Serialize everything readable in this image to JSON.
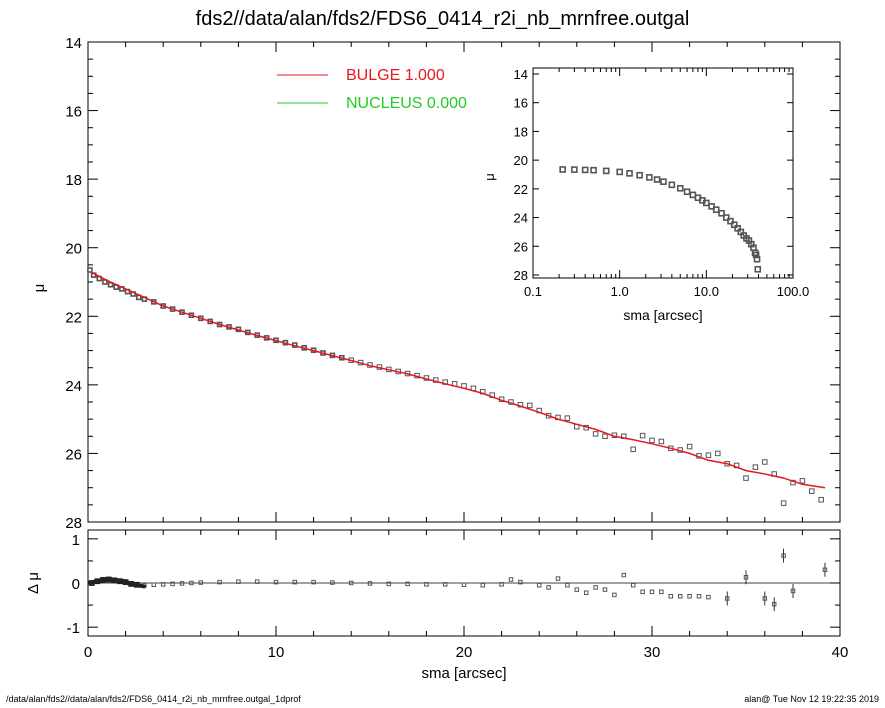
{
  "title": "fds2//data/alan/fds2/FDS6_0414_r2i_nb_mrnfree.outgal",
  "footer_left": "/data/alan/fds2//data/alan/fds2/FDS6_0414_r2i_nb_mrnfree.outgal_1dprof",
  "footer_right": "alan@  Tue Nov 12 19:22:35 2019",
  "colors": {
    "bulge": "#e8171b",
    "nucleus": "#22cc22",
    "data": "#555555",
    "axis": "#000000"
  },
  "chart_data": [
    {
      "id": "main",
      "type": "scatter",
      "xlabel": "",
      "ylabel": "μ",
      "xlim": [
        0,
        40
      ],
      "ylim": [
        28,
        14
      ],
      "xticks": [],
      "yticks": [
        "14",
        "16",
        "18",
        "20",
        "22",
        "24",
        "26",
        "28"
      ],
      "legend": {
        "placement": "top-center",
        "entries": [
          {
            "label": "BULGE  1.000",
            "color": "#e8171b"
          },
          {
            "label": "NUCLEUS  0.000",
            "color": "#22cc22"
          }
        ]
      },
      "series": [
        {
          "name": "BULGE  1.000",
          "style": "line",
          "x": [
            0.2,
            1,
            2,
            3,
            4,
            5,
            6,
            7,
            8,
            9,
            10,
            11,
            12,
            13,
            14,
            15,
            16,
            17,
            18,
            19,
            20,
            21,
            22,
            23,
            24,
            25,
            26,
            27,
            28,
            29,
            30,
            31,
            32,
            33,
            34,
            35,
            36,
            37,
            38,
            39.2
          ],
          "y": [
            20.72,
            20.95,
            21.2,
            21.45,
            21.7,
            21.88,
            22.06,
            22.24,
            22.4,
            22.56,
            22.71,
            22.86,
            23.0,
            23.15,
            23.29,
            23.44,
            23.56,
            23.68,
            23.83,
            23.97,
            24.1,
            24.25,
            24.45,
            24.62,
            24.8,
            25.0,
            25.15,
            25.3,
            25.5,
            25.6,
            25.72,
            25.85,
            26.0,
            26.2,
            26.3,
            26.5,
            26.6,
            26.72,
            26.9,
            27.0
          ]
        },
        {
          "name": "data",
          "style": "square-markers",
          "x": [
            0.1,
            0.3,
            0.6,
            0.9,
            1.2,
            1.5,
            1.8,
            2.1,
            2.4,
            2.7,
            3.0,
            3.5,
            4.0,
            4.5,
            5.0,
            5.5,
            6.0,
            6.5,
            7.0,
            7.5,
            8.0,
            8.5,
            9.0,
            9.5,
            10.0,
            10.5,
            11.0,
            11.5,
            12.0,
            12.5,
            13.0,
            13.5,
            14.0,
            14.5,
            15.0,
            15.5,
            16.0,
            16.5,
            17.0,
            17.5,
            18.0,
            18.5,
            19.0,
            19.5,
            20.0,
            20.5,
            21.0,
            21.5,
            22.0,
            22.5,
            23.0,
            23.5,
            24.0,
            24.5,
            25.0,
            25.5,
            26.0,
            26.5,
            27.0,
            27.5,
            28.0,
            28.5,
            29.0,
            29.5,
            30.0,
            30.5,
            31.0,
            31.5,
            32.0,
            32.5,
            33.0,
            33.5,
            34.0,
            34.5,
            35.0,
            35.5,
            36.0,
            36.5,
            37.0,
            37.5,
            38.0,
            38.5,
            39.0
          ],
          "y": [
            20.65,
            20.8,
            20.9,
            21.0,
            21.08,
            21.15,
            21.2,
            21.28,
            21.35,
            21.45,
            21.5,
            21.58,
            21.7,
            21.79,
            21.88,
            21.97,
            22.06,
            22.15,
            22.24,
            22.31,
            22.38,
            22.47,
            22.55,
            22.63,
            22.7,
            22.77,
            22.84,
            22.92,
            22.99,
            23.07,
            23.14,
            23.21,
            23.28,
            23.35,
            23.42,
            23.48,
            23.55,
            23.61,
            23.67,
            23.73,
            23.8,
            23.86,
            23.92,
            23.97,
            24.03,
            24.1,
            24.2,
            24.3,
            24.42,
            24.5,
            24.58,
            24.6,
            24.75,
            24.9,
            24.95,
            24.97,
            25.22,
            25.25,
            25.43,
            25.5,
            25.47,
            25.5,
            25.88,
            25.48,
            25.62,
            25.65,
            25.85,
            25.9,
            25.8,
            26.07,
            26.05,
            26.0,
            26.3,
            26.35,
            26.72,
            26.4,
            26.25,
            26.6,
            27.45,
            26.85,
            26.8,
            27.1,
            27.35
          ]
        }
      ]
    },
    {
      "id": "inset",
      "type": "scatter",
      "xlabel": "sma [arcsec]",
      "ylabel": "μ",
      "xscale": "log",
      "xlim": [
        0.1,
        100
      ],
      "ylim": [
        28,
        14
      ],
      "xticks": [
        "0.1",
        "1.0",
        "10.0",
        "100.0"
      ],
      "yticks": [
        "14",
        "16",
        "18",
        "20",
        "22",
        "24",
        "26",
        "28"
      ],
      "series": [
        {
          "name": "data",
          "style": "square-markers",
          "x": [
            0.22,
            0.3,
            0.4,
            0.5,
            0.7,
            1.0,
            1.3,
            1.7,
            2.2,
            2.7,
            3.2,
            4.0,
            5.0,
            6.0,
            7.0,
            8.0,
            9.0,
            10.0,
            11.5,
            13.0,
            15.0,
            17.0,
            19.0,
            21.0,
            23.0,
            25.0,
            27.0,
            29.0,
            31.0,
            33.0,
            35.0,
            36.5,
            37.5,
            38.5,
            39.2
          ],
          "y": [
            20.65,
            20.66,
            20.68,
            20.7,
            20.75,
            20.82,
            20.92,
            21.05,
            21.2,
            21.35,
            21.5,
            21.72,
            21.96,
            22.2,
            22.42,
            22.62,
            22.8,
            22.98,
            23.22,
            23.45,
            23.7,
            24.0,
            24.25,
            24.5,
            24.75,
            25.0,
            25.25,
            25.45,
            25.6,
            25.85,
            26.1,
            26.45,
            26.6,
            26.9,
            27.6
          ]
        }
      ]
    },
    {
      "id": "residual",
      "type": "scatter",
      "xlabel": "sma [arcsec]",
      "ylabel": "Δ μ",
      "xlim": [
        0,
        40
      ],
      "ylim": [
        -1.2,
        1.2
      ],
      "xticks": [
        "0",
        "10",
        "20",
        "30",
        "40"
      ],
      "yticks": [
        "1",
        "0",
        "-1"
      ],
      "zero_line": true,
      "series": [
        {
          "name": "residual",
          "style": "square-markers",
          "x": [
            0.2,
            0.5,
            0.8,
            1.1,
            1.4,
            1.7,
            2.0,
            2.3,
            2.6,
            3.0,
            3.5,
            4.0,
            4.5,
            5.0,
            5.5,
            6.0,
            7.0,
            8.0,
            9.0,
            10.0,
            11.0,
            12.0,
            13.0,
            14.0,
            15.0,
            16.0,
            17.0,
            18.0,
            19.0,
            20.0,
            21.0,
            22.0,
            22.5,
            23.0,
            24.0,
            24.5,
            25.0,
            25.5,
            26.0,
            26.5,
            27.0,
            27.5,
            28.0,
            28.5,
            29.0,
            29.5,
            30.0,
            30.5,
            31.0,
            31.5,
            32.0,
            32.5,
            33.0,
            34.0,
            35.0,
            36.0,
            36.5,
            37.0,
            37.5,
            39.2
          ],
          "y": [
            0.0,
            0.04,
            0.07,
            0.08,
            0.06,
            0.04,
            0.02,
            -0.02,
            -0.04,
            -0.05,
            -0.04,
            -0.03,
            -0.02,
            -0.01,
            0.0,
            0.01,
            0.02,
            0.03,
            0.03,
            0.02,
            0.02,
            0.02,
            0.01,
            0.0,
            -0.01,
            -0.02,
            -0.02,
            -0.03,
            -0.03,
            -0.04,
            -0.05,
            -0.03,
            0.08,
            0.02,
            -0.05,
            -0.1,
            0.1,
            -0.05,
            -0.15,
            -0.22,
            -0.1,
            -0.15,
            -0.27,
            0.18,
            -0.05,
            -0.2,
            -0.2,
            -0.2,
            -0.3,
            -0.3,
            -0.3,
            -0.3,
            -0.32,
            -0.35,
            0.13,
            -0.35,
            -0.48,
            0.62,
            -0.18,
            0.3
          ]
        }
      ]
    }
  ]
}
